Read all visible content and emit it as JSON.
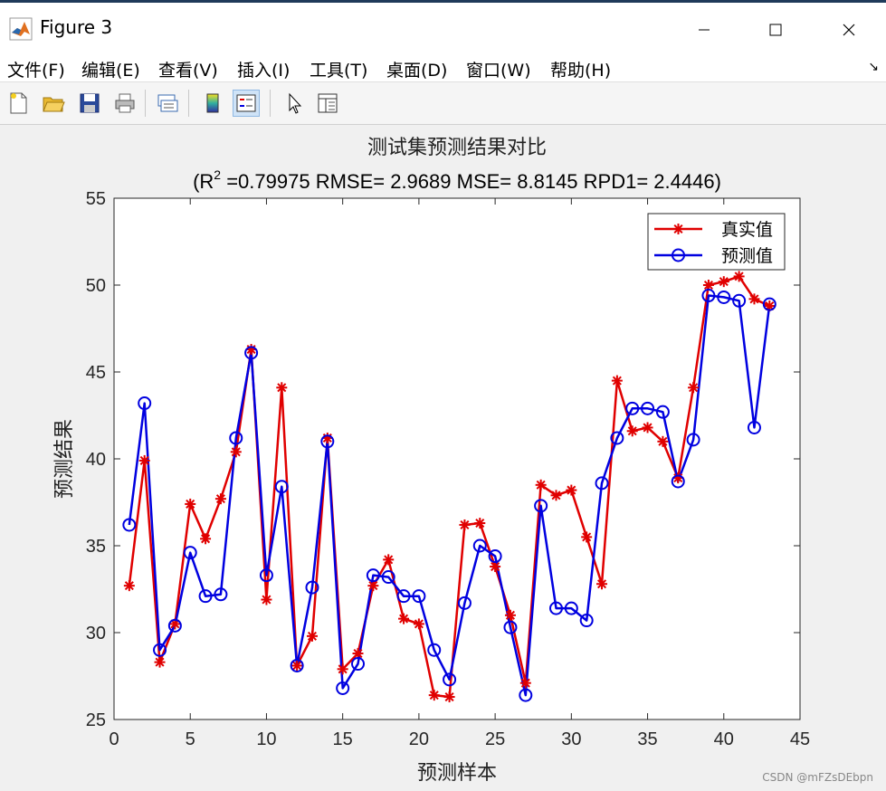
{
  "window": {
    "title": "Figure 3",
    "icon": "matlab-logo-icon",
    "controls": {
      "minimize": "minimize-icon",
      "maximize": "maximize-icon",
      "close": "close-icon"
    }
  },
  "menu": {
    "items": [
      {
        "label": "文件(F)",
        "name": "menu-file"
      },
      {
        "label": "编辑(E)",
        "name": "menu-edit"
      },
      {
        "label": "查看(V)",
        "name": "menu-view"
      },
      {
        "label": "插入(I)",
        "name": "menu-insert"
      },
      {
        "label": "工具(T)",
        "name": "menu-tools"
      },
      {
        "label": "桌面(D)",
        "name": "menu-desktop"
      },
      {
        "label": "窗口(W)",
        "name": "menu-window"
      },
      {
        "label": "帮助(H)",
        "name": "menu-help"
      }
    ],
    "dock_arrow": "↘"
  },
  "toolbar": {
    "buttons": [
      "new-figure-icon",
      "open-file-icon",
      "save-icon",
      "print-icon",
      "link-plot-icon",
      "colorbar-icon",
      "legend-icon",
      "pointer-icon",
      "property-editor-icon"
    ]
  },
  "chart_data": {
    "type": "line",
    "title": "测试集预测结果对比",
    "subtitle_prefix": "(R",
    "subtitle_sup": "2",
    "subtitle_rest": " =0.79975 RMSE= 2.9689 MSE= 8.8145 RPD1= 2.4446)",
    "xlabel": "预测样本",
    "ylabel": "预测结果",
    "xlim": [
      0,
      45
    ],
    "ylim": [
      25,
      55
    ],
    "xticks": [
      0,
      5,
      10,
      15,
      20,
      25,
      30,
      35,
      40,
      45
    ],
    "yticks": [
      25,
      30,
      35,
      40,
      45,
      50,
      55
    ],
    "grid": false,
    "legend_position": "top-right",
    "x": [
      1,
      2,
      3,
      4,
      5,
      6,
      7,
      8,
      9,
      10,
      11,
      12,
      13,
      14,
      15,
      16,
      17,
      18,
      19,
      20,
      21,
      22,
      23,
      24,
      25,
      26,
      27,
      28,
      29,
      30,
      31,
      32,
      33,
      34,
      35,
      36,
      37,
      38,
      39,
      40,
      41,
      42,
      43
    ],
    "series": [
      {
        "name": "真实值",
        "color": "#e00000",
        "marker": "asterisk",
        "values": [
          32.7,
          39.9,
          28.3,
          30.5,
          37.4,
          35.4,
          37.7,
          40.4,
          46.3,
          31.9,
          44.1,
          28.1,
          29.8,
          41.2,
          27.9,
          28.8,
          32.7,
          34.2,
          30.8,
          30.5,
          26.4,
          26.3,
          36.2,
          36.3,
          33.8,
          31.0,
          27.1,
          38.5,
          37.9,
          38.2,
          35.5,
          32.8,
          44.5,
          41.6,
          41.8,
          41.0,
          38.9,
          44.1,
          50.0,
          50.2,
          50.5,
          49.2,
          48.8
        ]
      },
      {
        "name": "预测值",
        "color": "#0000e0",
        "marker": "circle",
        "values": [
          36.2,
          43.2,
          29.0,
          30.4,
          34.6,
          32.1,
          32.2,
          41.2,
          46.1,
          33.3,
          38.4,
          28.1,
          32.6,
          41.0,
          26.8,
          28.2,
          33.3,
          33.2,
          32.1,
          32.1,
          29.0,
          27.3,
          31.7,
          35.0,
          34.4,
          30.3,
          26.4,
          37.3,
          31.4,
          31.4,
          30.7,
          38.6,
          41.2,
          42.9,
          42.9,
          42.7,
          38.7,
          41.1,
          49.4,
          49.3,
          49.1,
          41.8,
          48.9
        ]
      }
    ]
  },
  "watermark": "CSDN @mFZsDEbpn"
}
